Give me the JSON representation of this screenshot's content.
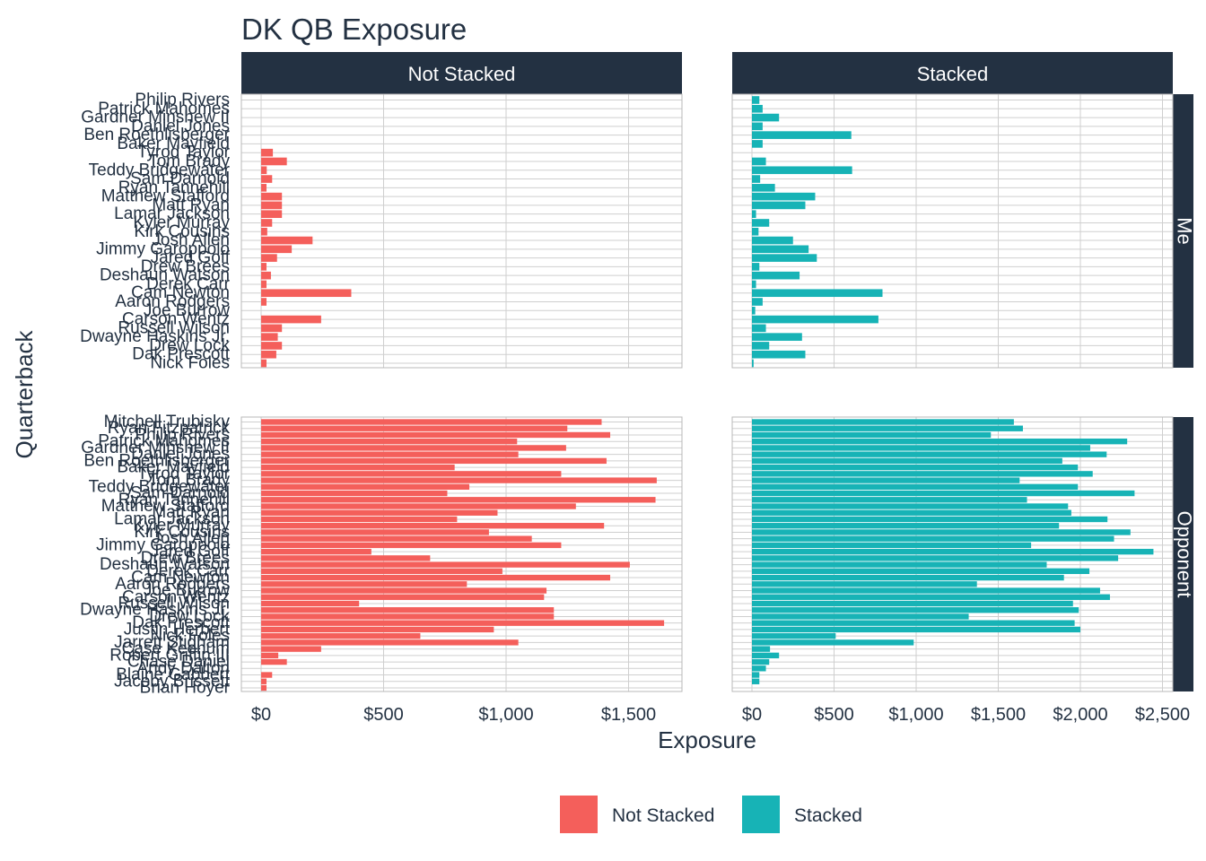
{
  "chart_data": {
    "type": "bar",
    "title": "DK QB Exposure",
    "xlabel": "Exposure",
    "ylabel": "Quarterback",
    "legend": {
      "position": "bottom",
      "entries": [
        "Not Stacked",
        "Stacked"
      ]
    },
    "colors": {
      "Not Stacked": "#f45f5b",
      "Stacked": "#17b3b6",
      "strip": "#233142",
      "text": "#233142",
      "grid": "#cfcfcf",
      "border": "#b8b8b8"
    },
    "columns": [
      "Not Stacked",
      "Stacked"
    ],
    "rows": [
      "Me",
      "Opponent"
    ],
    "x_ticks": {
      "Not Stacked": {
        "values": [
          0,
          500,
          1000,
          1500
        ],
        "labels": [
          "$0",
          "$500",
          "$1,000",
          "$1,500"
        ],
        "xlim": [
          0,
          1720
        ]
      },
      "Stacked": {
        "values": [
          0,
          500,
          1000,
          1500,
          2000,
          2500
        ],
        "labels": [
          "$0",
          "$500",
          "$1,000",
          "$1,500",
          "$2,000",
          "$2,500"
        ],
        "xlim": [
          0,
          2530
        ]
      }
    },
    "panels": {
      "Me": {
        "categories": [
          "Philip Rivers",
          "Patrick Mahomes",
          "Gardner Minshew II",
          "Daniel Jones",
          "Ben Roethlisberger",
          "Baker Mayfield",
          "Tyrod Taylor",
          "Tom Brady",
          "Teddy Bridgewater",
          "Sam Darnold",
          "Ryan Tannehill",
          "Matthew Stafford",
          "Matt Ryan",
          "Lamar Jackson",
          "Kyler Murray",
          "Kirk Cousins",
          "Josh Allen",
          "Jimmy Garoppolo",
          "Jared Goff",
          "Drew Brees",
          "Deshaun Watson",
          "Derek Carr",
          "Cam Newton",
          "Aaron Rodgers",
          "Joe Burrow",
          "Carson Wentz",
          "Russell Wilson",
          "Dwayne Haskins Jr.",
          "Drew Lock",
          "Dak Prescott",
          "Nick Foles"
        ],
        "series": [
          {
            "name": "Not Stacked",
            "values": [
              0,
              0,
              0,
              0,
              0,
              0,
              48,
              105,
              23,
              45,
              22,
              85,
              85,
              85,
              45,
              25,
              210,
              125,
              65,
              22,
              40,
              22,
              368,
              22,
              0,
              245,
              85,
              68,
              85,
              62,
              22
            ]
          },
          {
            "name": "Stacked",
            "values": [
              45,
              65,
              165,
              65,
              605,
              65,
              0,
              85,
              610,
              50,
              140,
              385,
              325,
              25,
              105,
              40,
              250,
              345,
              395,
              45,
              290,
              25,
              795,
              65,
              20,
              770,
              85,
              305,
              105,
              325,
              10
            ]
          }
        ]
      },
      "Opponent": {
        "categories": [
          "Mitchell Trubisky",
          "Ryan Fitzpatrick",
          "Philip Rivers",
          "Patrick Mahomes",
          "Gardner Minshew II",
          "Daniel Jones",
          "Ben Roethlisberger",
          "Baker Mayfield",
          "Tyrod Taylor",
          "Tom Brady",
          "Teddy Bridgewater",
          "Sam Darnold",
          "Ryan Tannehill",
          "Matthew Stafford",
          "Matt Ryan",
          "Lamar Jackson",
          "Kyler Murray",
          "Kirk Cousins",
          "Josh Allen",
          "Jimmy Garoppolo",
          "Jared Goff",
          "Drew Brees",
          "Deshaun Watson",
          "Derek Carr",
          "Cam Newton",
          "Aaron Rodgers",
          "Joe Burrow",
          "Carson Wentz",
          "Russell Wilson",
          "Dwayne Haskins Jr.",
          "Drew Lock",
          "Dak Prescott",
          "Justin Herbert",
          "Nick Foles",
          "Jarrett Stidham",
          "Case Keenum",
          "Robert Griffin III",
          "Chase Daniel",
          "Andy Dalton",
          "Blaine Gabbert",
          "Jacoby Brissett",
          "Brian Hoyer"
        ],
        "series": [
          {
            "name": "Not Stacked",
            "values": [
              1390,
              1250,
              1425,
              1045,
              1245,
              1050,
              1410,
              790,
              1225,
              1615,
              850,
              760,
              1610,
              1285,
              965,
              800,
              1400,
              930,
              1105,
              1225,
              450,
              690,
              1505,
              985,
              1425,
              840,
              1165,
              1155,
              400,
              1195,
              1195,
              1645,
              950,
              650,
              1050,
              245,
              70,
              105,
              0,
              45,
              22,
              22
            ]
          },
          {
            "name": "Stacked",
            "values": [
              1595,
              1650,
              1455,
              2285,
              2060,
              2160,
              1890,
              1985,
              2075,
              1630,
              1985,
              2330,
              1675,
              1925,
              1945,
              2165,
              1870,
              2305,
              2205,
              1700,
              2445,
              2230,
              1795,
              2055,
              1900,
              1370,
              2120,
              2180,
              1955,
              1990,
              1320,
              1965,
              2000,
              510,
              985,
              110,
              165,
              105,
              85,
              45,
              45,
              0
            ]
          }
        ]
      }
    }
  }
}
